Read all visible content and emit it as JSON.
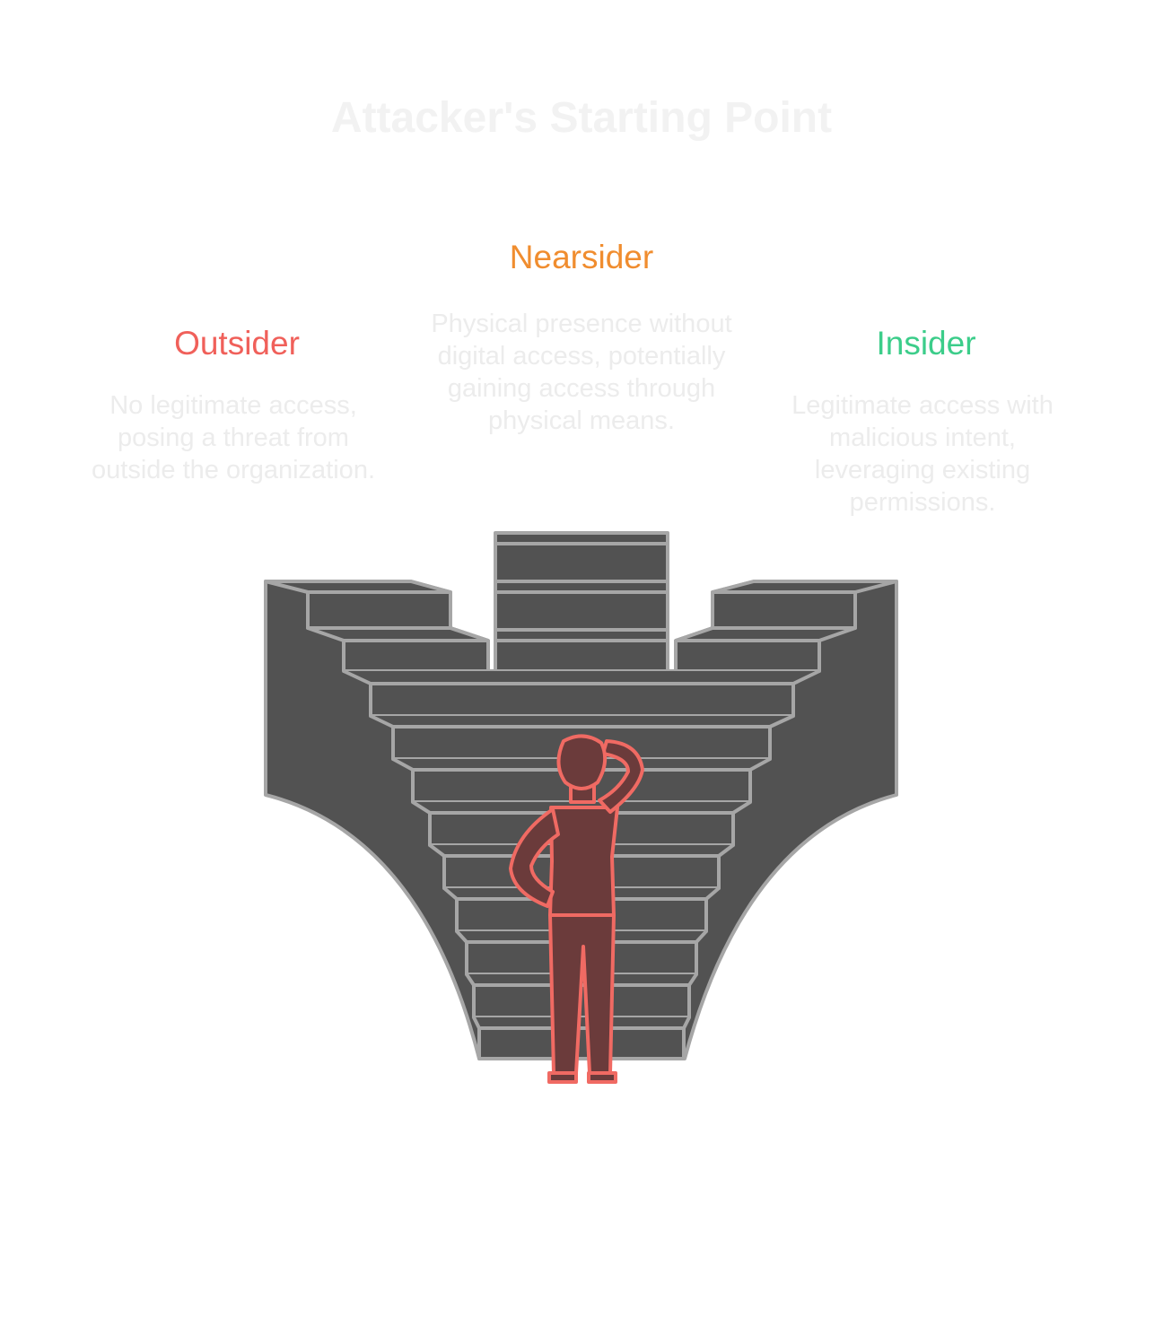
{
  "title": "Attacker's Starting Point",
  "categories": {
    "outsider": {
      "label": "Outsider",
      "description": "No legitimate access, posing a threat from outside the organization.",
      "color": "#f0605a"
    },
    "nearsider": {
      "label": "Nearsider",
      "description": "Physical presence without digital access, potentially gaining access through physical means.",
      "color": "#f08d2f"
    },
    "insider": {
      "label": "Insider",
      "description": "Legitimate access with malicious intent, leveraging existing permissions.",
      "color": "#3ccd8a"
    }
  },
  "illustration": {
    "icons": [
      "staircase-icon",
      "person-thinking-icon"
    ],
    "stair_color": "#525252",
    "outline_color": "#a6a6a6",
    "person_color": "#6b3b3b",
    "person_outline": "#f06a63"
  }
}
